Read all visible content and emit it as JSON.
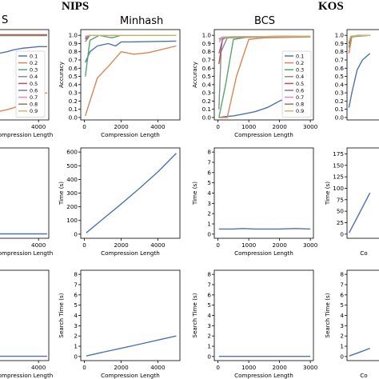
{
  "headers": {
    "left": "NIPS",
    "right": "KOS"
  },
  "subtitles": {
    "fragment_left": "S",
    "minhash": "Minhash",
    "bcs": "BCS"
  },
  "colors": {
    "0.1": "#4c72b0",
    "0.2": "#dd8452",
    "0.3": "#55a868",
    "0.4": "#8c8c8c",
    "0.5": "#c44e52",
    "0.6": "#8172b3",
    "0.7": "#da8bc3",
    "0.8": "#937860",
    "0.9": "#ccb974"
  },
  "chart_data": [
    {
      "type": "line",
      "ylabel": "",
      "xlabel": "Compression Length",
      "xlim": [
        -700,
        5200
      ],
      "ylim": [
        0,
        1.06
      ],
      "xticks": [
        4000
      ],
      "yticks": [],
      "series": [
        {
          "name": "0.1",
          "x": [
            -700,
            300,
            1000,
            2000,
            3000,
            4000,
            5000
          ],
          "y": [
            0.78,
            0.8,
            0.82,
            0.84,
            0.85,
            0.86,
            0.86
          ]
        },
        {
          "name": "0.2",
          "x": [
            -700,
            300,
            1000,
            2000,
            3000,
            4000,
            5000
          ],
          "y": [
            0.1,
            0.12,
            0.14,
            0.18,
            0.24,
            0.29,
            0.32
          ]
        },
        {
          "name": "0.3",
          "x": [
            -700,
            5000
          ],
          "y": [
            0.99,
            0.99
          ]
        },
        {
          "name": "0.4",
          "x": [
            -700,
            5000
          ],
          "y": [
            0.995,
            0.995
          ]
        },
        {
          "name": "0.5",
          "x": [
            -700,
            5000
          ],
          "y": [
            1.0,
            1.0
          ]
        }
      ]
    },
    {
      "type": "line",
      "ylabel": "Accuracy",
      "xlabel": "Compression Length",
      "xlim": [
        -200,
        5200
      ],
      "ylim": [
        -0.03,
        1.07
      ],
      "xticks": [
        0,
        2000,
        4000
      ],
      "yticks": [
        0.0,
        0.1,
        0.2,
        0.3,
        0.4,
        0.5,
        0.6,
        0.7,
        0.8,
        0.9,
        1.0
      ],
      "series": [
        {
          "name": "0.1",
          "x": [
            50,
            300,
            700,
            1300,
            1700,
            2000,
            2500,
            5000
          ],
          "y": [
            0.67,
            0.8,
            0.87,
            0.9,
            0.87,
            0.92,
            0.92,
            0.93
          ]
        },
        {
          "name": "0.2",
          "x": [
            50,
            300,
            700,
            1300,
            2000,
            2700,
            3500,
            5000
          ],
          "y": [
            0.02,
            0.2,
            0.48,
            0.62,
            0.8,
            0.77,
            0.79,
            0.87
          ]
        },
        {
          "name": "0.3",
          "x": [
            50,
            300,
            800,
            1500,
            2000,
            5000
          ],
          "y": [
            0.5,
            0.94,
            1.0,
            0.97,
            1.0,
            1.0
          ]
        },
        {
          "name": "0.4",
          "x": [
            50,
            300,
            5000
          ],
          "y": [
            0.92,
            1.0,
            1.0
          ]
        },
        {
          "name": "0.5",
          "x": [
            50,
            300,
            5000
          ],
          "y": [
            0.95,
            1.0,
            1.0
          ]
        },
        {
          "name": "0.6",
          "x": [
            50,
            300,
            5000
          ],
          "y": [
            0.96,
            1.0,
            1.0
          ]
        },
        {
          "name": "0.7",
          "x": [
            50,
            300,
            5000
          ],
          "y": [
            0.97,
            1.0,
            1.0
          ]
        },
        {
          "name": "0.8",
          "x": [
            50,
            300,
            5000
          ],
          "y": [
            0.98,
            1.0,
            1.0
          ]
        },
        {
          "name": "0.9",
          "x": [
            50,
            300,
            5000
          ],
          "y": [
            0.99,
            1.0,
            1.0
          ]
        }
      ]
    },
    {
      "type": "line",
      "ylabel": "Accuracy",
      "xlabel": "Compression Length",
      "xlim": [
        -120,
        3100
      ],
      "ylim": [
        -0.03,
        1.07
      ],
      "xticks": [
        0,
        1000,
        2000,
        3000
      ],
      "yticks": [
        0.0,
        0.1,
        0.2,
        0.3,
        0.4,
        0.5,
        0.6,
        0.7,
        0.8,
        0.9,
        1.0
      ],
      "series": [
        {
          "name": "0.1",
          "x": [
            30,
            200,
            500,
            800,
            1200,
            1600,
            2000,
            2500,
            3000
          ],
          "y": [
            0.0,
            0.01,
            0.02,
            0.04,
            0.07,
            0.12,
            0.2,
            0.28,
            0.33
          ]
        },
        {
          "name": "0.2",
          "x": [
            30,
            300,
            600,
            1000,
            1500,
            3000
          ],
          "y": [
            0.0,
            0.0,
            0.5,
            0.95,
            0.97,
            0.98
          ]
        },
        {
          "name": "0.3",
          "x": [
            30,
            250,
            500,
            1000,
            3000
          ],
          "y": [
            0.0,
            0.4,
            0.95,
            0.98,
            0.99
          ]
        },
        {
          "name": "0.4",
          "x": [
            30,
            100,
            300,
            3000
          ],
          "y": [
            0.1,
            0.8,
            0.97,
            0.99
          ]
        },
        {
          "name": "0.5",
          "x": [
            30,
            150,
            300,
            3000
          ],
          "y": [
            0.65,
            0.96,
            0.98,
            0.99
          ]
        },
        {
          "name": "0.6",
          "x": [
            30,
            150,
            300,
            3000
          ],
          "y": [
            0.78,
            0.95,
            0.98,
            0.99
          ]
        },
        {
          "name": "0.7",
          "x": [
            30,
            150,
            300,
            3000
          ],
          "y": [
            0.92,
            0.97,
            0.98,
            0.99
          ]
        },
        {
          "name": "0.8",
          "x": [
            30,
            150,
            3000
          ],
          "y": [
            0.95,
            0.98,
            0.99
          ]
        },
        {
          "name": "0.9",
          "x": [
            30,
            150,
            3000
          ],
          "y": [
            0.96,
            0.98,
            0.99
          ]
        }
      ]
    },
    {
      "type": "line",
      "ylabel": "",
      "xlabel": "",
      "xlim": [
        -150,
        3000
      ],
      "ylim": [
        -0.03,
        1.07
      ],
      "xticks": [],
      "yticks": [
        0.0,
        0.1,
        0.2,
        0.3,
        0.4,
        0.5,
        0.6,
        0.7,
        0.8,
        0.9,
        1.0
      ],
      "series": [
        {
          "name": "0.1",
          "x": [
            30,
            300,
            800,
            1300,
            2000
          ],
          "y": [
            0.12,
            0.3,
            0.58,
            0.7,
            0.78
          ]
        },
        {
          "name": "0.2",
          "x": [
            30,
            300,
            800,
            2000
          ],
          "y": [
            0.78,
            0.98,
            1.0,
            1.0
          ]
        },
        {
          "name": "0.3",
          "x": [
            30,
            200,
            2000
          ],
          "y": [
            0.85,
            0.98,
            1.0
          ]
        },
        {
          "name": "0.5",
          "x": [
            30,
            200,
            2000
          ],
          "y": [
            0.9,
            0.99,
            1.0
          ]
        },
        {
          "name": "0.9",
          "x": [
            30,
            200,
            2000
          ],
          "y": [
            0.92,
            0.99,
            1.0
          ]
        }
      ]
    },
    {
      "type": "line",
      "ylabel": "",
      "xlabel": "Compression Length",
      "xlim": [
        -700,
        5200
      ],
      "ylim": [
        -30,
        630
      ],
      "xticks": [
        4000
      ],
      "yticks": [],
      "series": [
        {
          "name": "",
          "x": [
            -700,
            2000,
            3000,
            4000,
            5000
          ],
          "y": [
            2,
            2,
            2,
            2,
            2
          ]
        }
      ]
    },
    {
      "type": "line",
      "ylabel": "Time (s)",
      "xlabel": "Compression Length",
      "xlim": [
        -200,
        5200
      ],
      "ylim": [
        -30,
        630
      ],
      "xticks": [
        0,
        2000,
        4000
      ],
      "yticks": [
        0,
        100,
        200,
        300,
        400,
        500,
        600
      ],
      "series": [
        {
          "name": "",
          "x": [
            100,
            1000,
            2000,
            3000,
            4000,
            5000
          ],
          "y": [
            10,
            110,
            220,
            335,
            455,
            590
          ]
        }
      ]
    },
    {
      "type": "line",
      "ylabel": "Time (s)",
      "xlabel": "Compression Length",
      "xlim": [
        -120,
        3100
      ],
      "ylim": [
        -0.4,
        8.4
      ],
      "xticks": [
        0,
        1000,
        2000,
        3000
      ],
      "yticks": [
        0,
        1,
        2,
        3,
        4,
        5,
        6,
        7,
        8
      ],
      "series": [
        {
          "name": "",
          "x": [
            30,
            500,
            800,
            1200,
            1600,
            2000,
            2500,
            3000
          ],
          "y": [
            0.5,
            0.5,
            0.55,
            0.5,
            0.5,
            0.5,
            0.55,
            0.5
          ]
        }
      ]
    },
    {
      "type": "line",
      "ylabel": "Time (s)",
      "xlabel": "Co",
      "xlim": [
        -150,
        3000
      ],
      "ylim": [
        -9,
        188
      ],
      "xticks": [],
      "yticks": [
        0,
        25,
        50,
        75,
        100,
        125,
        150,
        175
      ],
      "series": [
        {
          "name": "",
          "x": [
            50,
            1000,
            2000
          ],
          "y": [
            3,
            45,
            90
          ]
        }
      ]
    },
    {
      "type": "line",
      "ylabel": "",
      "xlabel": "Compression Length",
      "xlim": [
        -700,
        5200
      ],
      "ylim": [
        -0.4,
        8.4
      ],
      "xticks": [
        4000
      ],
      "yticks": [],
      "series": [
        {
          "name": "",
          "x": [
            -700,
            2000,
            4000,
            5000
          ],
          "y": [
            0.02,
            0.02,
            0.02,
            0.02
          ]
        }
      ]
    },
    {
      "type": "line",
      "ylabel": "Search Time (s)",
      "xlabel": "Compression Length",
      "xlim": [
        -200,
        5200
      ],
      "ylim": [
        -0.4,
        8.4
      ],
      "xticks": [
        0,
        2000,
        4000
      ],
      "yticks": [
        0,
        1,
        2,
        3,
        4,
        5,
        6,
        7,
        8
      ],
      "series": [
        {
          "name": "",
          "x": [
            100,
            1000,
            2000,
            3000,
            4000,
            5000
          ],
          "y": [
            0.05,
            0.42,
            0.8,
            1.2,
            1.6,
            2.0
          ]
        }
      ]
    },
    {
      "type": "line",
      "ylabel": "Search Time (s)",
      "xlabel": "Compression Length",
      "xlim": [
        -120,
        3100
      ],
      "ylim": [
        -0.4,
        8.4
      ],
      "xticks": [
        0,
        1000,
        2000,
        3000
      ],
      "yticks": [
        0,
        1,
        2,
        3,
        4,
        5,
        6,
        7,
        8
      ],
      "series": [
        {
          "name": "",
          "x": [
            30,
            1000,
            2000,
            3000
          ],
          "y": [
            0.01,
            0.01,
            0.01,
            0.01
          ]
        }
      ]
    },
    {
      "type": "line",
      "ylabel": "Search Time (s)",
      "xlabel": "Co",
      "xlim": [
        -150,
        3000
      ],
      "ylim": [
        -0.4,
        8.4
      ],
      "xticks": [],
      "yticks": [
        0,
        1,
        2,
        3,
        4,
        5,
        6,
        7,
        8
      ],
      "series": [
        {
          "name": "",
          "x": [
            50,
            1000,
            2000
          ],
          "y": [
            0.05,
            0.4,
            0.8
          ]
        }
      ]
    }
  ],
  "legends": [
    {
      "entries": [
        "0.1",
        "0.2",
        "0.3",
        "0.4",
        "0.5",
        "0.6",
        "0.7",
        "0.8",
        "0.9"
      ]
    },
    {
      "entries": [
        "0.1",
        "0.2",
        "0.3",
        "0.4",
        "0.5",
        "0.6",
        "0.7",
        "0.8",
        "0.9"
      ]
    }
  ]
}
